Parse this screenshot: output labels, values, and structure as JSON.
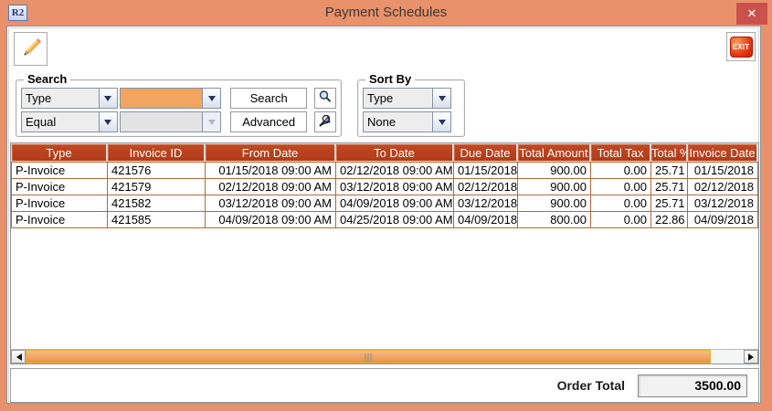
{
  "window": {
    "title": "Payment Schedules",
    "app_icon_text": "R2",
    "close_icon": "✕"
  },
  "toolbar": {
    "edit_icon": "pencil-icon",
    "exit_label": "EXIT"
  },
  "search": {
    "group_label": "Search",
    "field_combo_value": "Type",
    "operator_combo_value": "Equal",
    "value_combo_value": "",
    "value2_combo_value": "",
    "search_button_label": "Search",
    "advanced_button_label": "Advanced",
    "search_icon": "magnifier-icon",
    "advanced_icon": "advanced-find-icon"
  },
  "sort": {
    "group_label": "Sort By",
    "primary_combo_value": "Type",
    "secondary_combo_value": "None"
  },
  "table": {
    "columns": [
      "Type",
      "Invoice ID",
      "From Date",
      "To Date",
      "Due Date",
      "Total Amount",
      "Total Tax",
      "Total %",
      "Invoice Date"
    ],
    "rows": [
      [
        "P-Invoice",
        "421576",
        "01/15/2018 09:00 AM",
        "02/12/2018 09:00 AM",
        "01/15/2018",
        "900.00",
        "0.00",
        "25.71",
        "01/15/2018"
      ],
      [
        "P-Invoice",
        "421579",
        "02/12/2018 09:00 AM",
        "03/12/2018 09:00 AM",
        "02/12/2018",
        "900.00",
        "0.00",
        "25.71",
        "02/12/2018"
      ],
      [
        "P-Invoice",
        "421582",
        "03/12/2018 09:00 AM",
        "04/09/2018 09:00 AM",
        "03/12/2018",
        "900.00",
        "0.00",
        "25.71",
        "03/12/2018"
      ],
      [
        "P-Invoice",
        "421585",
        "04/09/2018 09:00 AM",
        "04/25/2018 09:00 AM",
        "04/09/2018",
        "800.00",
        "0.00",
        "22.86",
        "04/09/2018"
      ]
    ]
  },
  "footer": {
    "order_total_label": "Order Total",
    "order_total_value": "3500.00"
  },
  "colors": {
    "frame_orange": "#E8916A",
    "table_header_rust": "#B23A18",
    "grid_line_brown": "#AE6B3F",
    "close_button_red": "#C9524E",
    "highlighted_combo_orange": "#F2A55F",
    "scroll_thumb_orange": "#EE9D58"
  }
}
